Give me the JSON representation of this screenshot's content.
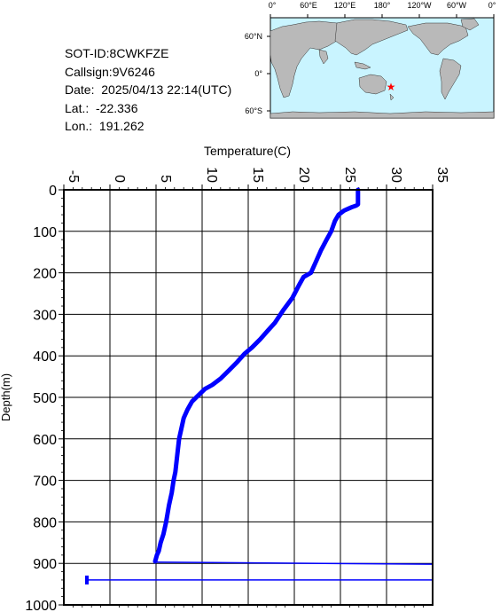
{
  "info": {
    "sot_id": "SOT-ID:8CWKFZE",
    "callsign": "Callsign:9V6246",
    "date": "Date:  2025/04/13 22:14(UTC)",
    "lat": "Lat.:  -22.336",
    "lon": "Lon.:  191.262"
  },
  "map": {
    "top_labels": [
      "0°",
      "60°E",
      "120°E",
      "180°",
      "120°W",
      "60°W",
      "0°"
    ],
    "left_labels": [
      "60°N",
      "0°",
      "60°S"
    ],
    "marker": {
      "lat": -22.336,
      "lon": 191.262
    },
    "colors": {
      "ocean": "#c9f4ff",
      "land": "#b9b9b9",
      "marker": "#ff0000"
    }
  },
  "chart_data": {
    "type": "line",
    "xlabel": "Temperature(C)",
    "ylabel": "Depth(m)",
    "xlim": [
      -5,
      35
    ],
    "ylim": [
      1000,
      0
    ],
    "xticks": [
      "-5",
      "0",
      "5",
      "10",
      "15",
      "20",
      "25",
      "30",
      "35"
    ],
    "yticks": [
      "0",
      "100",
      "200",
      "300",
      "400",
      "500",
      "600",
      "700",
      "800",
      "900",
      "1000"
    ],
    "grid": true,
    "color": "#0000ff",
    "series": [
      {
        "x": [
          26.9,
          26.9,
          26.7,
          26.2,
          25.4,
          24.8,
          24.4,
          24.0,
          23.5,
          22.9,
          22.4,
          21.8,
          21.0,
          20.5,
          19.8,
          18.8,
          17.9,
          17.1,
          16.3,
          15.4,
          14.6,
          13.8,
          12.9,
          12.0,
          11.1,
          10.3,
          9.6,
          8.9,
          8.4,
          8.0,
          7.7,
          7.5,
          7.3,
          7.1,
          6.9,
          6.7,
          6.4,
          6.1,
          5.8,
          5.5,
          5.3,
          5.1,
          4.9
        ],
        "y": [
          0,
          35,
          38,
          42,
          50,
          60,
          75,
          100,
          120,
          145,
          170,
          200,
          210,
          230,
          260,
          290,
          320,
          340,
          360,
          380,
          395,
          415,
          435,
          455,
          470,
          480,
          495,
          510,
          530,
          550,
          580,
          600,
          640,
          680,
          700,
          730,
          760,
          800,
          830,
          850,
          870,
          880,
          895
        ]
      },
      {
        "x": [
          4.9,
          35.0
        ],
        "y": [
          897,
          902
        ]
      },
      {
        "x": [
          -2.5,
          35.0
        ],
        "y": [
          940,
          940
        ]
      }
    ]
  }
}
